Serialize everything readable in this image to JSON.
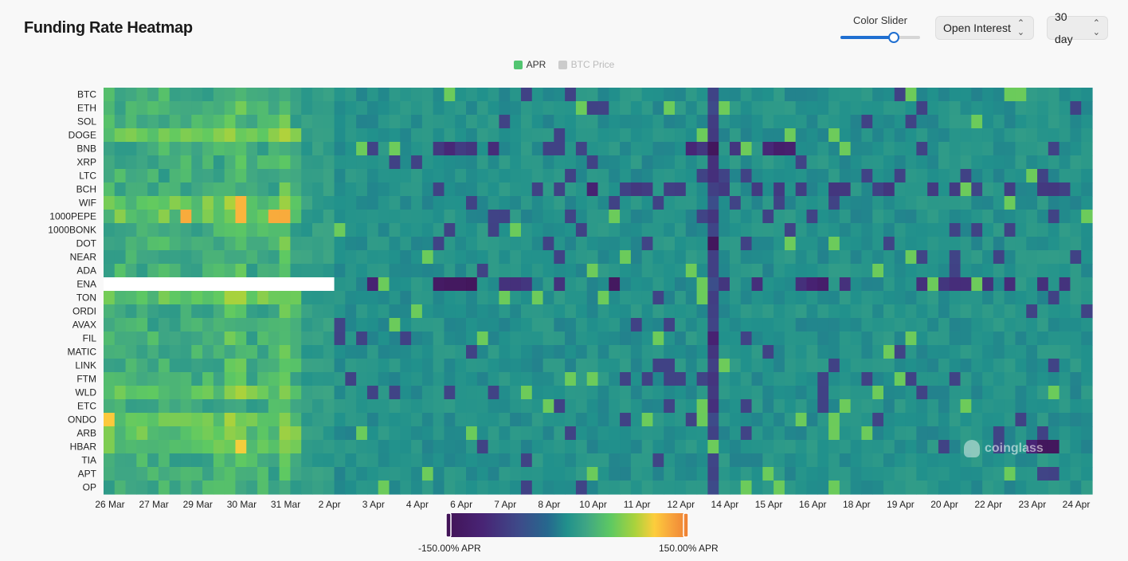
{
  "header": {
    "title": "Funding Rate Heatmap",
    "slider_label": "Color Slider",
    "slider_value": 0.67,
    "select_metric": "Open Interest",
    "select_range": "30 day"
  },
  "colors": {
    "accent": "#1f6fd1",
    "apr_legend": "#52c571",
    "btc_legend": "#cccccc",
    "base_cell": "#3fa584",
    "missing": "#ffffff"
  },
  "watermark": "coinglass",
  "chart_data": {
    "type": "heatmap",
    "title": "",
    "legend": [
      {
        "name": "APR",
        "color": "#52c571",
        "active": true
      },
      {
        "name": "BTC Price",
        "color": "#cccccc",
        "active": false
      }
    ],
    "coins": [
      "BTC",
      "ETH",
      "SOL",
      "DOGE",
      "BNB",
      "XRP",
      "LTC",
      "BCH",
      "WIF",
      "1000PEPE",
      "1000BONK",
      "DOT",
      "NEAR",
      "ADA",
      "ENA",
      "TON",
      "ORDI",
      "AVAX",
      "FIL",
      "MATIC",
      "LINK",
      "FTM",
      "WLD",
      "ETC",
      "ONDO",
      "ARB",
      "HBAR",
      "TIA",
      "APT",
      "OP"
    ],
    "x_ticks": [
      "26 Mar",
      "27 Mar",
      "29 Mar",
      "30 Mar",
      "31 Mar",
      "2 Apr",
      "3 Apr",
      "4 Apr",
      "6 Apr",
      "7 Apr",
      "8 Apr",
      "10 Apr",
      "11 Apr",
      "12 Apr",
      "14 Apr",
      "15 Apr",
      "16 Apr",
      "18 Apr",
      "19 Apr",
      "20 Apr",
      "22 Apr",
      "23 Apr",
      "24 Apr"
    ],
    "periods": 90,
    "colorbar": {
      "min": -150,
      "max": 150,
      "min_label": "-150.00% APR",
      "max_label": "150.00% APR"
    },
    "missing_cells": [
      {
        "coin": "ENA",
        "from_period": 0,
        "to_period": 20
      }
    ],
    "highlights": [
      {
        "coin": "BNB",
        "period": 55,
        "value": -140
      },
      {
        "coin": "BNB",
        "period": 61,
        "value": -120
      },
      {
        "coin": "BNB",
        "period": 62,
        "value": -115
      },
      {
        "coin": "BNB",
        "period": 31,
        "value": -100
      },
      {
        "coin": "BNB",
        "period": 35,
        "value": -95
      },
      {
        "coin": "DOT",
        "period": 55,
        "value": -140
      },
      {
        "coin": "ENA",
        "period": 30,
        "value": -130
      },
      {
        "coin": "ENA",
        "period": 31,
        "value": -135
      },
      {
        "coin": "ENA",
        "period": 32,
        "value": -135
      },
      {
        "coin": "ENA",
        "period": 33,
        "value": -140
      },
      {
        "coin": "ENA",
        "period": 24,
        "value": -110
      },
      {
        "coin": "ENA",
        "period": 46,
        "value": -135
      },
      {
        "coin": "ENA",
        "period": 64,
        "value": -110
      },
      {
        "coin": "ENA",
        "period": 65,
        "value": -120
      },
      {
        "coin": "ENA",
        "period": 82,
        "value": -95
      },
      {
        "coin": "HBAR",
        "period": 85,
        "value": -140
      },
      {
        "coin": "HBAR",
        "period": 86,
        "value": -140
      },
      {
        "coin": "HBAR",
        "period": 84,
        "value": -105
      },
      {
        "coin": "BCH",
        "period": 44,
        "value": -110
      },
      {
        "coin": "FIL",
        "period": 55,
        "value": -110
      },
      {
        "coin": "WIF",
        "period": 12,
        "value": 120
      },
      {
        "coin": "1000PEPE",
        "period": 7,
        "value": 125
      },
      {
        "coin": "1000PEPE",
        "period": 12,
        "value": 120
      },
      {
        "coin": "1000PEPE",
        "period": 15,
        "value": 125
      },
      {
        "coin": "1000PEPE",
        "period": 16,
        "value": 125
      },
      {
        "coin": "HBAR",
        "period": 12,
        "value": 105
      },
      {
        "coin": "ONDO",
        "period": 0,
        "value": 110
      }
    ]
  }
}
